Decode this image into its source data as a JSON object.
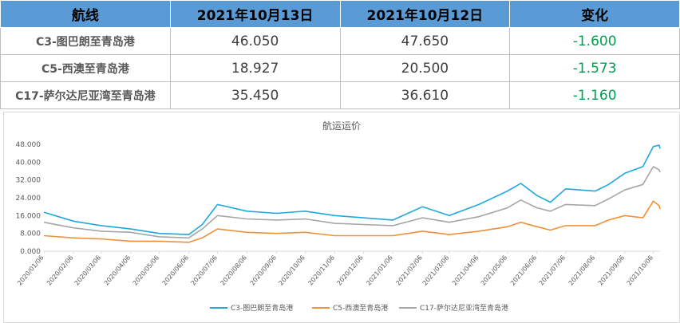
{
  "table": {
    "headers": [
      "航线",
      "2021年10月13日",
      "2021年10月12日",
      "变化"
    ],
    "rows": [
      {
        "route": "C3-图巴朗至青岛港",
        "d13": "46.050",
        "d12": "47.650",
        "change": "-1.600"
      },
      {
        "route": "C5-西澳至青岛港",
        "d13": "18.927",
        "d12": "20.500",
        "change": "-1.573"
      },
      {
        "route": "C17-萨尔达尼亚湾至青岛港",
        "d13": "35.450",
        "d12": "36.610",
        "change": "-1.160"
      }
    ]
  },
  "chart_data": {
    "type": "line",
    "title": "航运运价",
    "ylim": [
      0,
      48
    ],
    "y_ticks": [
      "0.000",
      "8.000",
      "16.000",
      "24.000",
      "32.000",
      "40.000",
      "48.000"
    ],
    "y_tick_values": [
      0,
      8,
      16,
      24,
      32,
      40,
      48
    ],
    "x_ticks": [
      "2020/01/06",
      "2020/02/06",
      "2020/03/06",
      "2020/04/06",
      "2020/05/06",
      "2020/06/06",
      "2020/07/06",
      "2020/08/06",
      "2020/09/06",
      "2020/10/06",
      "2020/11/06",
      "2020/12/06",
      "2021/01/06",
      "2021/02/06",
      "2021/03/06",
      "2021/04/06",
      "2021/05/06",
      "2021/06/06",
      "2021/07/06",
      "2021/08/06",
      "2021/09/06",
      "2021/10/06"
    ],
    "legend_position": "bottom",
    "grid": false,
    "series": [
      {
        "name": "C3-图巴朗至青岛港",
        "color": "#1fa8e0",
        "values": [
          [
            "2020/01/06",
            17.5
          ],
          [
            "2020/02/06",
            13.5
          ],
          [
            "2020/03/06",
            11.5
          ],
          [
            "2020/04/06",
            10.0
          ],
          [
            "2020/05/06",
            8.0
          ],
          [
            "2020/06/06",
            7.5
          ],
          [
            "2020/06/20",
            12.0
          ],
          [
            "2020/07/06",
            21.0
          ],
          [
            "2020/08/06",
            18.0
          ],
          [
            "2020/09/06",
            17.0
          ],
          [
            "2020/10/06",
            18.0
          ],
          [
            "2020/11/06",
            16.0
          ],
          [
            "2020/12/06",
            15.0
          ],
          [
            "2021/01/06",
            14.0
          ],
          [
            "2021/02/06",
            20.0
          ],
          [
            "2021/03/06",
            16.0
          ],
          [
            "2021/04/06",
            21.0
          ],
          [
            "2021/05/06",
            27.0
          ],
          [
            "2021/05/20",
            30.5
          ],
          [
            "2021/06/06",
            25.0
          ],
          [
            "2021/06/20",
            22.0
          ],
          [
            "2021/07/06",
            28.0
          ],
          [
            "2021/08/06",
            27.0
          ],
          [
            "2021/08/20",
            30.0
          ],
          [
            "2021/09/06",
            35.0
          ],
          [
            "2021/09/25",
            38.0
          ],
          [
            "2021/10/06",
            47.0
          ],
          [
            "2021/10/12",
            47.65
          ],
          [
            "2021/10/13",
            46.05
          ]
        ]
      },
      {
        "name": "C5-西澳至青岛港",
        "color": "#f0903a",
        "values": [
          [
            "2020/01/06",
            7.0
          ],
          [
            "2020/02/06",
            6.0
          ],
          [
            "2020/03/06",
            5.5
          ],
          [
            "2020/04/06",
            4.5
          ],
          [
            "2020/05/06",
            4.5
          ],
          [
            "2020/06/06",
            4.0
          ],
          [
            "2020/06/20",
            6.0
          ],
          [
            "2020/07/06",
            10.0
          ],
          [
            "2020/08/06",
            8.5
          ],
          [
            "2020/09/06",
            8.0
          ],
          [
            "2020/10/06",
            8.5
          ],
          [
            "2020/11/06",
            7.0
          ],
          [
            "2020/12/06",
            7.0
          ],
          [
            "2021/01/06",
            7.0
          ],
          [
            "2021/02/06",
            9.0
          ],
          [
            "2021/03/06",
            7.5
          ],
          [
            "2021/04/06",
            9.0
          ],
          [
            "2021/05/06",
            11.0
          ],
          [
            "2021/05/20",
            13.0
          ],
          [
            "2021/06/06",
            11.0
          ],
          [
            "2021/06/20",
            9.5
          ],
          [
            "2021/07/06",
            11.5
          ],
          [
            "2021/08/06",
            11.5
          ],
          [
            "2021/08/20",
            14.0
          ],
          [
            "2021/09/06",
            16.0
          ],
          [
            "2021/09/25",
            15.0
          ],
          [
            "2021/10/06",
            22.5
          ],
          [
            "2021/10/12",
            20.5
          ],
          [
            "2021/10/13",
            18.927
          ]
        ]
      },
      {
        "name": "C17-萨尔达尼亚湾至青岛港",
        "color": "#a6a6a6",
        "values": [
          [
            "2020/01/06",
            13.0
          ],
          [
            "2020/02/06",
            10.5
          ],
          [
            "2020/03/06",
            9.0
          ],
          [
            "2020/04/06",
            8.5
          ],
          [
            "2020/05/06",
            6.5
          ],
          [
            "2020/06/06",
            6.0
          ],
          [
            "2020/06/20",
            10.0
          ],
          [
            "2020/07/06",
            16.0
          ],
          [
            "2020/08/06",
            14.5
          ],
          [
            "2020/09/06",
            14.0
          ],
          [
            "2020/10/06",
            14.5
          ],
          [
            "2020/11/06",
            12.5
          ],
          [
            "2020/12/06",
            12.0
          ],
          [
            "2021/01/06",
            11.5
          ],
          [
            "2021/02/06",
            15.0
          ],
          [
            "2021/03/06",
            13.0
          ],
          [
            "2021/04/06",
            15.5
          ],
          [
            "2021/05/06",
            19.5
          ],
          [
            "2021/05/20",
            23.0
          ],
          [
            "2021/06/06",
            19.5
          ],
          [
            "2021/06/20",
            18.0
          ],
          [
            "2021/07/06",
            21.0
          ],
          [
            "2021/08/06",
            20.5
          ],
          [
            "2021/08/20",
            23.5
          ],
          [
            "2021/09/06",
            27.5
          ],
          [
            "2021/09/25",
            30.0
          ],
          [
            "2021/10/06",
            38.0
          ],
          [
            "2021/10/12",
            36.61
          ],
          [
            "2021/10/13",
            35.45
          ]
        ]
      }
    ]
  }
}
